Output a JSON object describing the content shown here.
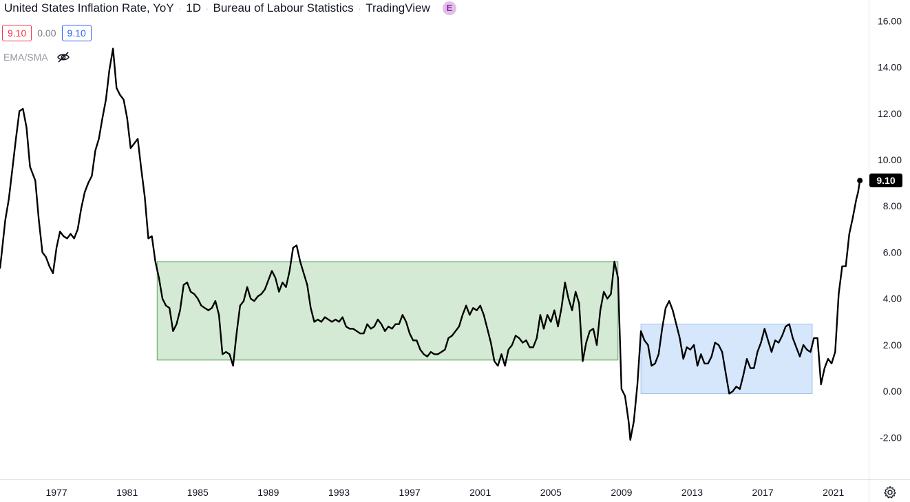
{
  "header": {
    "title": "United States Inflation Rate, YoY",
    "interval": "1D",
    "source": "Bureau of Labour Statistics",
    "platform": "TradingView",
    "badge": "E"
  },
  "values": {
    "first": "9.10",
    "change": "0.00",
    "last": "9.10"
  },
  "indicator": {
    "label": "EMA/SMA",
    "visibility_icon": "eye-crossed-icon"
  },
  "price_label": "9.10",
  "settings_icon": "gear-icon",
  "colors": {
    "line": "#000000",
    "zone_green": "#d4ead4",
    "zone_blue": "#d6e6fb"
  },
  "chart_data": {
    "type": "line",
    "title": "United States Inflation Rate, YoY",
    "xlabel": "",
    "ylabel": "",
    "xlim": [
      1973.8,
      2023.0
    ],
    "ylim": [
      -3.8,
      16.9
    ],
    "y_ticks": [
      "16.00",
      "14.00",
      "12.00",
      "10.00",
      "8.00",
      "6.00",
      "4.00",
      "2.00",
      "0.00",
      "-2.00"
    ],
    "x_ticks": [
      "1977",
      "1981",
      "1985",
      "1989",
      "1993",
      "1997",
      "2001",
      "2005",
      "2009",
      "2013",
      "2017",
      "2021"
    ],
    "grid": false,
    "last_value": 9.1,
    "zones": [
      {
        "x0": 1982.7,
        "x1": 2008.8,
        "y0": 1.35,
        "y1": 5.6,
        "color": "green"
      },
      {
        "x0": 2010.1,
        "x1": 2019.8,
        "y0": -0.1,
        "y1": 2.9,
        "color": "blue"
      }
    ],
    "series": [
      {
        "points": [
          [
            1973.8,
            5.3
          ],
          [
            1973.9,
            6.0
          ],
          [
            1974.1,
            7.4
          ],
          [
            1974.3,
            8.3
          ],
          [
            1974.5,
            9.6
          ],
          [
            1974.7,
            10.9
          ],
          [
            1974.9,
            12.1
          ],
          [
            1975.1,
            12.2
          ],
          [
            1975.3,
            11.4
          ],
          [
            1975.5,
            9.7
          ],
          [
            1975.8,
            9.1
          ],
          [
            1976.0,
            7.4
          ],
          [
            1976.2,
            6.0
          ],
          [
            1976.4,
            5.8
          ],
          [
            1976.6,
            5.4
          ],
          [
            1976.8,
            5.1
          ],
          [
            1977.0,
            6.2
          ],
          [
            1977.2,
            6.9
          ],
          [
            1977.4,
            6.7
          ],
          [
            1977.6,
            6.6
          ],
          [
            1977.8,
            6.8
          ],
          [
            1978.0,
            6.6
          ],
          [
            1978.2,
            7.0
          ],
          [
            1978.4,
            7.9
          ],
          [
            1978.6,
            8.6
          ],
          [
            1978.8,
            9.0
          ],
          [
            1979.0,
            9.3
          ],
          [
            1979.2,
            10.4
          ],
          [
            1979.4,
            10.9
          ],
          [
            1979.6,
            11.8
          ],
          [
            1979.8,
            12.6
          ],
          [
            1980.0,
            13.9
          ],
          [
            1980.2,
            14.8
          ],
          [
            1980.4,
            13.1
          ],
          [
            1980.6,
            12.8
          ],
          [
            1980.8,
            12.6
          ],
          [
            1981.0,
            11.8
          ],
          [
            1981.2,
            10.5
          ],
          [
            1981.4,
            10.7
          ],
          [
            1981.6,
            10.9
          ],
          [
            1981.8,
            9.6
          ],
          [
            1982.0,
            8.4
          ],
          [
            1982.2,
            6.6
          ],
          [
            1982.4,
            6.7
          ],
          [
            1982.6,
            5.6
          ],
          [
            1982.8,
            4.9
          ],
          [
            1983.0,
            4.0
          ],
          [
            1983.2,
            3.7
          ],
          [
            1983.4,
            3.6
          ],
          [
            1983.6,
            2.6
          ],
          [
            1983.8,
            2.9
          ],
          [
            1984.0,
            3.5
          ],
          [
            1984.2,
            4.6
          ],
          [
            1984.4,
            4.7
          ],
          [
            1984.6,
            4.3
          ],
          [
            1984.8,
            4.2
          ],
          [
            1985.0,
            4.0
          ],
          [
            1985.2,
            3.7
          ],
          [
            1985.4,
            3.6
          ],
          [
            1985.6,
            3.5
          ],
          [
            1985.8,
            3.6
          ],
          [
            1986.0,
            3.9
          ],
          [
            1986.2,
            3.3
          ],
          [
            1986.4,
            1.6
          ],
          [
            1986.6,
            1.7
          ],
          [
            1986.8,
            1.6
          ],
          [
            1987.0,
            1.1
          ],
          [
            1987.2,
            2.5
          ],
          [
            1987.4,
            3.7
          ],
          [
            1987.6,
            3.9
          ],
          [
            1987.8,
            4.5
          ],
          [
            1988.0,
            4.0
          ],
          [
            1988.2,
            3.9
          ],
          [
            1988.4,
            4.1
          ],
          [
            1988.6,
            4.2
          ],
          [
            1988.8,
            4.4
          ],
          [
            1989.0,
            4.8
          ],
          [
            1989.2,
            5.2
          ],
          [
            1989.4,
            4.9
          ],
          [
            1989.6,
            4.3
          ],
          [
            1989.8,
            4.7
          ],
          [
            1990.0,
            4.5
          ],
          [
            1990.2,
            5.2
          ],
          [
            1990.4,
            6.2
          ],
          [
            1990.6,
            6.3
          ],
          [
            1990.8,
            5.6
          ],
          [
            1991.0,
            5.1
          ],
          [
            1991.2,
            4.6
          ],
          [
            1991.4,
            3.6
          ],
          [
            1991.6,
            3.0
          ],
          [
            1991.8,
            3.1
          ],
          [
            1992.0,
            3.0
          ],
          [
            1992.2,
            3.2
          ],
          [
            1992.4,
            3.1
          ],
          [
            1992.6,
            3.0
          ],
          [
            1992.8,
            3.1
          ],
          [
            1993.0,
            3.0
          ],
          [
            1993.2,
            3.2
          ],
          [
            1993.4,
            2.8
          ],
          [
            1993.6,
            2.7
          ],
          [
            1993.8,
            2.7
          ],
          [
            1994.0,
            2.6
          ],
          [
            1994.2,
            2.5
          ],
          [
            1994.4,
            2.5
          ],
          [
            1994.6,
            2.9
          ],
          [
            1994.8,
            2.7
          ],
          [
            1995.0,
            2.8
          ],
          [
            1995.2,
            3.1
          ],
          [
            1995.4,
            2.9
          ],
          [
            1995.6,
            2.6
          ],
          [
            1995.8,
            2.8
          ],
          [
            1996.0,
            2.7
          ],
          [
            1996.2,
            2.9
          ],
          [
            1996.4,
            2.9
          ],
          [
            1996.6,
            3.3
          ],
          [
            1996.8,
            3.0
          ],
          [
            1997.0,
            2.5
          ],
          [
            1997.2,
            2.2
          ],
          [
            1997.4,
            2.2
          ],
          [
            1997.6,
            1.8
          ],
          [
            1997.8,
            1.6
          ],
          [
            1998.0,
            1.5
          ],
          [
            1998.2,
            1.7
          ],
          [
            1998.4,
            1.6
          ],
          [
            1998.6,
            1.6
          ],
          [
            1998.8,
            1.7
          ],
          [
            1999.0,
            1.8
          ],
          [
            1999.2,
            2.3
          ],
          [
            1999.4,
            2.4
          ],
          [
            1999.6,
            2.6
          ],
          [
            1999.8,
            2.8
          ],
          [
            2000.0,
            3.3
          ],
          [
            2000.2,
            3.7
          ],
          [
            2000.4,
            3.3
          ],
          [
            2000.6,
            3.6
          ],
          [
            2000.8,
            3.5
          ],
          [
            2001.0,
            3.7
          ],
          [
            2001.2,
            3.3
          ],
          [
            2001.4,
            2.7
          ],
          [
            2001.6,
            2.1
          ],
          [
            2001.8,
            1.3
          ],
          [
            2002.0,
            1.1
          ],
          [
            2002.2,
            1.6
          ],
          [
            2002.4,
            1.1
          ],
          [
            2002.6,
            1.8
          ],
          [
            2002.8,
            2.0
          ],
          [
            2003.0,
            2.4
          ],
          [
            2003.2,
            2.3
          ],
          [
            2003.4,
            2.1
          ],
          [
            2003.6,
            2.2
          ],
          [
            2003.8,
            1.9
          ],
          [
            2004.0,
            1.9
          ],
          [
            2004.2,
            2.3
          ],
          [
            2004.4,
            3.3
          ],
          [
            2004.6,
            2.7
          ],
          [
            2004.8,
            3.3
          ],
          [
            2005.0,
            3.0
          ],
          [
            2005.2,
            3.5
          ],
          [
            2005.4,
            2.8
          ],
          [
            2005.6,
            3.6
          ],
          [
            2005.8,
            4.7
          ],
          [
            2006.0,
            4.0
          ],
          [
            2006.2,
            3.5
          ],
          [
            2006.4,
            4.3
          ],
          [
            2006.6,
            3.8
          ],
          [
            2006.8,
            1.3
          ],
          [
            2007.0,
            2.1
          ],
          [
            2007.2,
            2.6
          ],
          [
            2007.4,
            2.7
          ],
          [
            2007.6,
            2.0
          ],
          [
            2007.8,
            3.5
          ],
          [
            2008.0,
            4.3
          ],
          [
            2008.2,
            4.0
          ],
          [
            2008.4,
            4.2
          ],
          [
            2008.6,
            5.6
          ],
          [
            2008.8,
            4.9
          ],
          [
            2009.0,
            0.1
          ],
          [
            2009.2,
            -0.2
          ],
          [
            2009.4,
            -1.3
          ],
          [
            2009.5,
            -2.1
          ],
          [
            2009.7,
            -1.3
          ],
          [
            2009.9,
            0.3
          ],
          [
            2010.1,
            2.6
          ],
          [
            2010.3,
            2.2
          ],
          [
            2010.5,
            2.0
          ],
          [
            2010.7,
            1.1
          ],
          [
            2010.9,
            1.2
          ],
          [
            2011.1,
            1.6
          ],
          [
            2011.3,
            2.7
          ],
          [
            2011.5,
            3.6
          ],
          [
            2011.7,
            3.9
          ],
          [
            2011.9,
            3.5
          ],
          [
            2012.1,
            2.9
          ],
          [
            2012.3,
            2.3
          ],
          [
            2012.5,
            1.4
          ],
          [
            2012.7,
            1.9
          ],
          [
            2012.9,
            1.8
          ],
          [
            2013.1,
            2.0
          ],
          [
            2013.3,
            1.1
          ],
          [
            2013.5,
            1.6
          ],
          [
            2013.7,
            1.2
          ],
          [
            2013.9,
            1.2
          ],
          [
            2014.1,
            1.5
          ],
          [
            2014.3,
            2.1
          ],
          [
            2014.5,
            2.0
          ],
          [
            2014.7,
            1.7
          ],
          [
            2014.9,
            0.8
          ],
          [
            2015.1,
            -0.1
          ],
          [
            2015.3,
            0.0
          ],
          [
            2015.5,
            0.2
          ],
          [
            2015.7,
            0.1
          ],
          [
            2015.9,
            0.7
          ],
          [
            2016.1,
            1.4
          ],
          [
            2016.3,
            1.0
          ],
          [
            2016.5,
            1.0
          ],
          [
            2016.7,
            1.7
          ],
          [
            2016.9,
            2.1
          ],
          [
            2017.1,
            2.7
          ],
          [
            2017.3,
            2.2
          ],
          [
            2017.5,
            1.7
          ],
          [
            2017.7,
            2.2
          ],
          [
            2017.9,
            2.1
          ],
          [
            2018.1,
            2.4
          ],
          [
            2018.3,
            2.8
          ],
          [
            2018.5,
            2.9
          ],
          [
            2018.7,
            2.3
          ],
          [
            2018.9,
            1.9
          ],
          [
            2019.1,
            1.5
          ],
          [
            2019.3,
            2.0
          ],
          [
            2019.5,
            1.8
          ],
          [
            2019.7,
            1.7
          ],
          [
            2019.9,
            2.3
          ],
          [
            2020.1,
            2.3
          ],
          [
            2020.3,
            0.3
          ],
          [
            2020.5,
            1.0
          ],
          [
            2020.7,
            1.4
          ],
          [
            2020.9,
            1.2
          ],
          [
            2021.1,
            1.7
          ],
          [
            2021.3,
            4.2
          ],
          [
            2021.5,
            5.4
          ],
          [
            2021.7,
            5.4
          ],
          [
            2021.9,
            6.8
          ],
          [
            2022.1,
            7.5
          ],
          [
            2022.3,
            8.3
          ],
          [
            2022.4,
            8.6
          ],
          [
            2022.5,
            9.1
          ]
        ]
      }
    ]
  }
}
